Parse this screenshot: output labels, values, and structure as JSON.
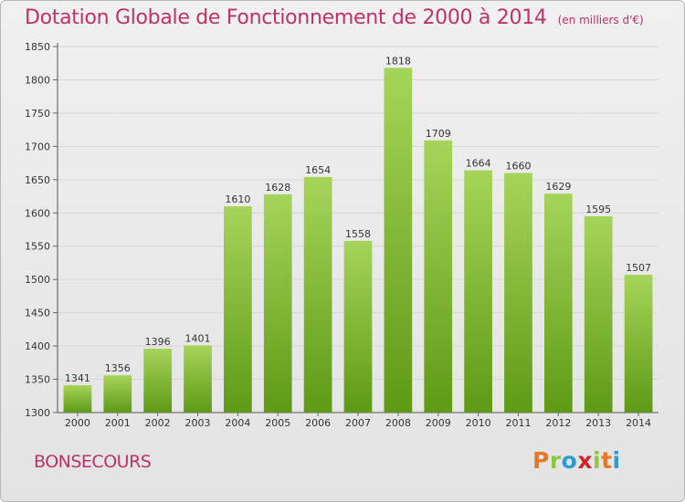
{
  "title": "Dotation Globale de Fonctionnement de 2000 à 2014",
  "subtitle": "(en milliers d'€)",
  "commune": "BONSECOURS",
  "logo": {
    "text": "Proxiti",
    "colors": [
      "#e87722",
      "#8dc63f",
      "#2e9ad6",
      "#d2232a",
      "#8dc63f",
      "#e87722",
      "#2e9ad6"
    ]
  },
  "colors": {
    "title": "#c0306a",
    "bar_top": "#a6d45a",
    "bar_bottom": "#5e9a16",
    "background": "#ececec"
  },
  "chart_data": {
    "type": "bar",
    "categories": [
      "2000",
      "2001",
      "2002",
      "2003",
      "2004",
      "2005",
      "2006",
      "2007",
      "2008",
      "2009",
      "2010",
      "2011",
      "2012",
      "2013",
      "2014"
    ],
    "values": [
      1341,
      1356,
      1396,
      1401,
      1610,
      1628,
      1654,
      1558,
      1818,
      1709,
      1664,
      1660,
      1629,
      1595,
      1507
    ],
    "ylim": [
      1300,
      1850
    ],
    "yticks": [
      1300,
      1350,
      1400,
      1450,
      1500,
      1550,
      1600,
      1650,
      1700,
      1750,
      1800,
      1850
    ],
    "grid": true,
    "data_labels": true
  }
}
